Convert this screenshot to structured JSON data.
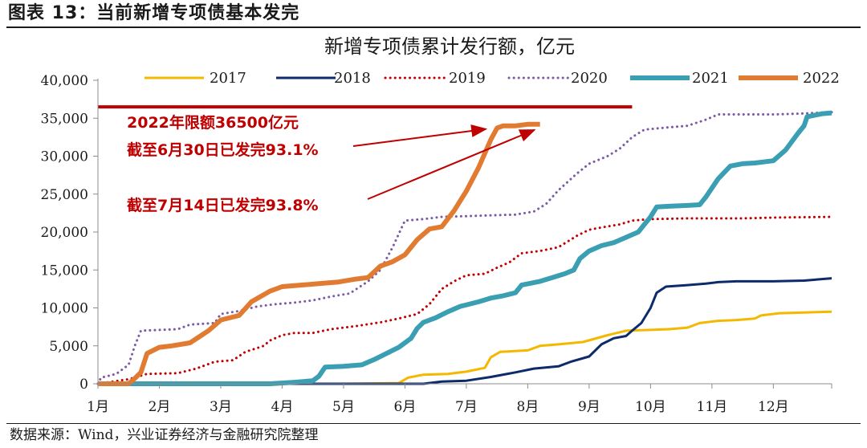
{
  "heading": "图表 13：当前新增专项债基本发完",
  "source": "数据来源：Wind，兴业证券经济与金融研究院整理",
  "chart_data": {
    "type": "line",
    "title": "新增专项债累计发行额，亿元",
    "xlabel": "",
    "ylabel": "",
    "ylim": [
      0,
      40000
    ],
    "yticks": [
      0,
      5000,
      10000,
      15000,
      20000,
      25000,
      30000,
      35000,
      40000
    ],
    "ytick_labels": [
      "0",
      "5,000",
      "10,000",
      "15,000",
      "20,000",
      "25,000",
      "30,000",
      "35,000",
      "40,000"
    ],
    "xlim": [
      1,
      12.95
    ],
    "xticks": [
      1,
      2,
      3,
      4,
      5,
      6,
      7,
      8,
      9,
      10,
      11,
      12
    ],
    "xtick_labels": [
      "1月",
      "2月",
      "3月",
      "4月",
      "5月",
      "6月",
      "7月",
      "8月",
      "9月",
      "10月",
      "11月",
      "12月"
    ],
    "legend_position": "top",
    "series": [
      {
        "name": "2017",
        "color": "#f5b800",
        "style": "solid",
        "width": 3,
        "points": [
          [
            1.0,
            0
          ],
          [
            5.0,
            0
          ],
          [
            5.9,
            100
          ],
          [
            6.05,
            800
          ],
          [
            6.3,
            1200
          ],
          [
            6.7,
            1300
          ],
          [
            7.0,
            1600
          ],
          [
            7.3,
            2100
          ],
          [
            7.4,
            3500
          ],
          [
            7.55,
            4200
          ],
          [
            8.0,
            4400
          ],
          [
            8.2,
            5000
          ],
          [
            8.5,
            5200
          ],
          [
            8.9,
            5500
          ],
          [
            9.3,
            6400
          ],
          [
            9.6,
            7000
          ],
          [
            10.0,
            7100
          ],
          [
            10.3,
            7200
          ],
          [
            10.6,
            7400
          ],
          [
            10.8,
            8000
          ],
          [
            11.1,
            8300
          ],
          [
            11.4,
            8400
          ],
          [
            11.7,
            8600
          ],
          [
            11.8,
            9000
          ],
          [
            12.1,
            9300
          ],
          [
            12.5,
            9400
          ],
          [
            12.95,
            9500
          ]
        ]
      },
      {
        "name": "2018",
        "color": "#0d2a6b",
        "style": "solid",
        "width": 3,
        "points": [
          [
            1.0,
            0
          ],
          [
            6.3,
            0
          ],
          [
            6.6,
            300
          ],
          [
            7.0,
            400
          ],
          [
            7.4,
            900
          ],
          [
            7.8,
            1500
          ],
          [
            8.1,
            2000
          ],
          [
            8.5,
            2300
          ],
          [
            8.7,
            2900
          ],
          [
            9.0,
            3600
          ],
          [
            9.2,
            5200
          ],
          [
            9.4,
            6000
          ],
          [
            9.6,
            6300
          ],
          [
            9.7,
            7000
          ],
          [
            9.85,
            8000
          ],
          [
            10.0,
            10000
          ],
          [
            10.1,
            12000
          ],
          [
            10.25,
            12800
          ],
          [
            10.6,
            13000
          ],
          [
            10.9,
            13200
          ],
          [
            11.1,
            13400
          ],
          [
            11.4,
            13500
          ],
          [
            12.0,
            13500
          ],
          [
            12.5,
            13600
          ],
          [
            12.95,
            13900
          ]
        ]
      },
      {
        "name": "2019",
        "color": "#c00000",
        "style": "dotted",
        "width": 3,
        "points": [
          [
            1.0,
            0
          ],
          [
            1.5,
            600
          ],
          [
            1.8,
            1300
          ],
          [
            2.3,
            1400
          ],
          [
            2.6,
            2000
          ],
          [
            2.9,
            2900
          ],
          [
            3.2,
            3100
          ],
          [
            3.4,
            4200
          ],
          [
            3.7,
            5000
          ],
          [
            3.8,
            5700
          ],
          [
            4.0,
            6400
          ],
          [
            4.2,
            6700
          ],
          [
            4.5,
            6700
          ],
          [
            4.8,
            7200
          ],
          [
            5.2,
            7600
          ],
          [
            5.6,
            8100
          ],
          [
            5.9,
            8600
          ],
          [
            6.2,
            9200
          ],
          [
            6.4,
            10500
          ],
          [
            6.6,
            12500
          ],
          [
            6.8,
            13500
          ],
          [
            7.0,
            14300
          ],
          [
            7.3,
            14500
          ],
          [
            7.5,
            15300
          ],
          [
            7.7,
            16000
          ],
          [
            7.9,
            17200
          ],
          [
            8.2,
            17500
          ],
          [
            8.5,
            18000
          ],
          [
            8.8,
            19500
          ],
          [
            9.0,
            20300
          ],
          [
            9.2,
            20600
          ],
          [
            9.5,
            21000
          ],
          [
            9.7,
            21500
          ],
          [
            10.0,
            21700
          ],
          [
            10.6,
            21800
          ],
          [
            11.5,
            21800
          ],
          [
            12.0,
            21900
          ],
          [
            12.95,
            22000
          ]
        ]
      },
      {
        "name": "2020",
        "color": "#7b5ba8",
        "style": "dotted",
        "width": 3,
        "points": [
          [
            1.0,
            0
          ],
          [
            1.05,
            800
          ],
          [
            1.3,
            1300
          ],
          [
            1.5,
            2500
          ],
          [
            1.6,
            5000
          ],
          [
            1.7,
            7000
          ],
          [
            2.0,
            7100
          ],
          [
            2.3,
            7200
          ],
          [
            2.5,
            7800
          ],
          [
            2.9,
            8000
          ],
          [
            3.0,
            9200
          ],
          [
            3.3,
            9600
          ],
          [
            3.6,
            10200
          ],
          [
            3.9,
            10500
          ],
          [
            4.2,
            10700
          ],
          [
            4.5,
            11000
          ],
          [
            4.8,
            11500
          ],
          [
            5.1,
            11900
          ],
          [
            5.4,
            13500
          ],
          [
            5.6,
            15000
          ],
          [
            5.8,
            18000
          ],
          [
            6.0,
            21500
          ],
          [
            6.3,
            21700
          ],
          [
            6.6,
            22000
          ],
          [
            7.0,
            22100
          ],
          [
            7.4,
            22200
          ],
          [
            7.8,
            22300
          ],
          [
            8.1,
            22700
          ],
          [
            8.3,
            23700
          ],
          [
            8.5,
            25500
          ],
          [
            8.8,
            27700
          ],
          [
            9.0,
            29000
          ],
          [
            9.3,
            30000
          ],
          [
            9.5,
            31000
          ],
          [
            9.7,
            32500
          ],
          [
            9.9,
            33500
          ],
          [
            10.3,
            33800
          ],
          [
            10.6,
            34000
          ],
          [
            10.9,
            34800
          ],
          [
            11.1,
            35500
          ],
          [
            11.5,
            35500
          ],
          [
            12.0,
            35500
          ],
          [
            12.4,
            35600
          ],
          [
            12.95,
            35800
          ]
        ]
      },
      {
        "name": "2021",
        "color": "#3a9fb2",
        "style": "solid",
        "width": 6,
        "points": [
          [
            1.0,
            0
          ],
          [
            3.8,
            0
          ],
          [
            4.2,
            200
          ],
          [
            4.5,
            400
          ],
          [
            4.6,
            1000
          ],
          [
            4.7,
            2200
          ],
          [
            5.0,
            2300
          ],
          [
            5.3,
            2500
          ],
          [
            5.5,
            3200
          ],
          [
            5.7,
            4000
          ],
          [
            5.9,
            4800
          ],
          [
            6.1,
            6000
          ],
          [
            6.2,
            7300
          ],
          [
            6.3,
            8100
          ],
          [
            6.5,
            8700
          ],
          [
            6.7,
            9500
          ],
          [
            6.9,
            10200
          ],
          [
            7.2,
            10800
          ],
          [
            7.4,
            11300
          ],
          [
            7.6,
            11600
          ],
          [
            7.8,
            12000
          ],
          [
            7.9,
            13000
          ],
          [
            8.2,
            13500
          ],
          [
            8.4,
            14000
          ],
          [
            8.6,
            14500
          ],
          [
            8.75,
            15000
          ],
          [
            8.85,
            16500
          ],
          [
            9.0,
            17500
          ],
          [
            9.2,
            18200
          ],
          [
            9.4,
            18600
          ],
          [
            9.6,
            19300
          ],
          [
            9.8,
            20000
          ],
          [
            9.9,
            21000
          ],
          [
            10.0,
            22000
          ],
          [
            10.1,
            23300
          ],
          [
            10.3,
            23400
          ],
          [
            10.6,
            23500
          ],
          [
            10.8,
            23600
          ],
          [
            10.9,
            24600
          ],
          [
            11.1,
            27000
          ],
          [
            11.3,
            28700
          ],
          [
            11.5,
            29000
          ],
          [
            11.7,
            29100
          ],
          [
            12.0,
            29400
          ],
          [
            12.2,
            30800
          ],
          [
            12.4,
            33000
          ],
          [
            12.5,
            34000
          ],
          [
            12.55,
            35200
          ],
          [
            12.8,
            35600
          ],
          [
            12.95,
            35700
          ]
        ]
      },
      {
        "name": "2022",
        "color": "#e07b31",
        "style": "solid",
        "width": 6,
        "points": [
          [
            1.0,
            0
          ],
          [
            1.5,
            0
          ],
          [
            1.6,
            700
          ],
          [
            1.7,
            1500
          ],
          [
            1.8,
            4000
          ],
          [
            2.0,
            4800
          ],
          [
            2.2,
            5000
          ],
          [
            2.5,
            5400
          ],
          [
            2.8,
            7000
          ],
          [
            3.0,
            8400
          ],
          [
            3.3,
            9000
          ],
          [
            3.5,
            10800
          ],
          [
            3.8,
            12200
          ],
          [
            4.0,
            12800
          ],
          [
            4.3,
            13000
          ],
          [
            4.6,
            13200
          ],
          [
            4.9,
            13400
          ],
          [
            5.2,
            13800
          ],
          [
            5.4,
            14000
          ],
          [
            5.6,
            15500
          ],
          [
            5.8,
            16100
          ],
          [
            6.0,
            17000
          ],
          [
            6.2,
            19000
          ],
          [
            6.4,
            20400
          ],
          [
            6.6,
            20700
          ],
          [
            6.8,
            22800
          ],
          [
            7.0,
            25400
          ],
          [
            7.2,
            28500
          ],
          [
            7.4,
            32200
          ],
          [
            7.5,
            33700
          ],
          [
            7.6,
            34000
          ],
          [
            7.8,
            34000
          ],
          [
            8.0,
            34200
          ],
          [
            8.2,
            34200
          ]
        ]
      }
    ],
    "limit_line": {
      "value": 36500,
      "from_x": 1,
      "to_x": 9.7,
      "color": "#c00000"
    },
    "annotations": [
      {
        "lines": [
          "2022年限额36500亿元",
          "截至6月30日已发完93.1%"
        ],
        "color": "#c00000",
        "arrow_to": [
          7.5,
          34000
        ]
      },
      {
        "lines": [
          "截至7月14日已发完93.8%"
        ],
        "color": "#c00000",
        "arrow_to": [
          7.95,
          34300
        ]
      }
    ]
  }
}
